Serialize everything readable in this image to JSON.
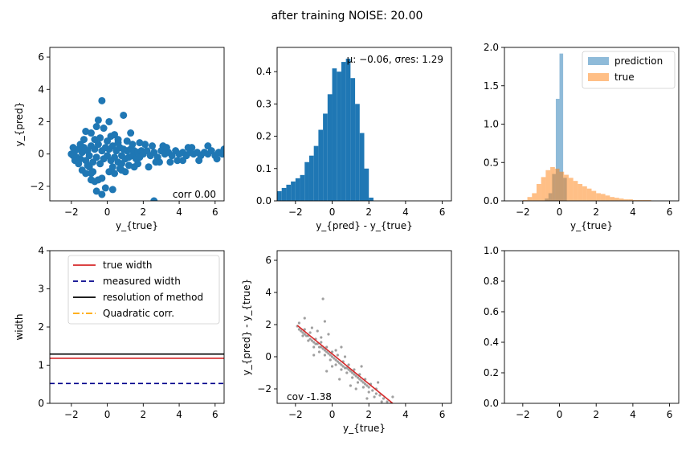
{
  "suptitle": "after training NOISE: 20.00",
  "chart_data": [
    {
      "id": "scatter-pred-vs-true",
      "type": "scatter",
      "title": "",
      "xlabel": "y_{true}",
      "ylabel": "y_{pred}",
      "xlim": [
        -3.2,
        6.5
      ],
      "ylim": [
        -2.9,
        6.6
      ],
      "xticks": [
        -2,
        0,
        2,
        4,
        6
      ],
      "yticks": [
        -2,
        0,
        2,
        4,
        6
      ],
      "xtick_labels": [
        "−2",
        "0",
        "2",
        "4",
        "6"
      ],
      "ytick_labels": [
        "−2",
        "0",
        "2",
        "4",
        "6"
      ],
      "color": "#1f77b4",
      "annotation": "corr 0.00",
      "points": [
        [
          -2.0,
          0.0
        ],
        [
          -1.9,
          -0.1
        ],
        [
          -1.8,
          0.2
        ],
        [
          -1.7,
          -0.2
        ],
        [
          -1.6,
          0.3
        ],
        [
          -1.5,
          -0.3
        ],
        [
          -1.4,
          0.1
        ],
        [
          -1.3,
          0.4
        ],
        [
          -1.2,
          -0.4
        ],
        [
          -1.1,
          0.2
        ],
        [
          -1.0,
          -0.1
        ],
        [
          -0.9,
          0.5
        ],
        [
          -0.8,
          -0.5
        ],
        [
          -0.7,
          0.3
        ],
        [
          -0.6,
          -0.2
        ],
        [
          -0.5,
          0.6
        ],
        [
          -0.4,
          -0.6
        ],
        [
          -0.3,
          0.2
        ],
        [
          -0.2,
          -0.3
        ],
        [
          -0.1,
          0.4
        ],
        [
          0.0,
          -0.1
        ],
        [
          0.1,
          0.3
        ],
        [
          0.2,
          -0.4
        ],
        [
          0.3,
          0.5
        ],
        [
          0.4,
          -0.2
        ],
        [
          0.5,
          0.2
        ],
        [
          0.6,
          -0.5
        ],
        [
          0.7,
          0.4
        ],
        [
          0.8,
          -0.1
        ],
        [
          0.9,
          0.3
        ],
        [
          1.0,
          -0.3
        ],
        [
          1.1,
          0.2
        ],
        [
          1.2,
          -0.2
        ],
        [
          1.3,
          0.3
        ],
        [
          1.4,
          -0.1
        ],
        [
          1.5,
          0.2
        ],
        [
          1.6,
          -0.3
        ],
        [
          1.7,
          0.1
        ],
        [
          1.8,
          -0.2
        ],
        [
          1.9,
          0.2
        ],
        [
          2.0,
          0.0
        ],
        [
          2.2,
          0.2
        ],
        [
          2.4,
          -0.1
        ],
        [
          2.6,
          0.1
        ],
        [
          2.8,
          -0.2
        ],
        [
          3.0,
          0.2
        ],
        [
          3.2,
          0.0
        ],
        [
          3.4,
          0.1
        ],
        [
          3.6,
          -0.1
        ],
        [
          3.8,
          0.2
        ],
        [
          4.0,
          0.0
        ],
        [
          4.2,
          0.1
        ],
        [
          4.4,
          -0.1
        ],
        [
          4.6,
          0.1
        ],
        [
          4.8,
          0.0
        ],
        [
          5.0,
          0.1
        ],
        [
          5.2,
          -0.1
        ],
        [
          5.4,
          0.1
        ],
        [
          5.6,
          0.0
        ],
        [
          5.8,
          0.2
        ],
        [
          6.0,
          -0.1
        ],
        [
          6.2,
          0.1
        ],
        [
          6.4,
          0.0
        ],
        [
          6.5,
          0.3
        ],
        [
          -0.3,
          3.3
        ],
        [
          0.9,
          2.4
        ],
        [
          -0.5,
          2.1
        ],
        [
          0.1,
          2.0
        ],
        [
          -0.9,
          1.3
        ],
        [
          -1.2,
          1.4
        ],
        [
          0.4,
          1.2
        ],
        [
          1.3,
          1.3
        ],
        [
          -0.6,
          1.7
        ],
        [
          -0.2,
          1.6
        ],
        [
          0.2,
          1.1
        ],
        [
          -1.4,
          -1.0
        ],
        [
          -1.2,
          -1.2
        ],
        [
          -0.8,
          -1.1
        ],
        [
          -0.3,
          -1.5
        ],
        [
          0.1,
          -1.1
        ],
        [
          0.4,
          -1.2
        ],
        [
          0.7,
          -0.9
        ],
        [
          -0.5,
          -1.6
        ],
        [
          -0.7,
          -1.7
        ],
        [
          0.8,
          -1.0
        ],
        [
          1.0,
          -1.1
        ],
        [
          1.5,
          -0.8
        ],
        [
          2.3,
          -0.8
        ],
        [
          1.2,
          -0.7
        ],
        [
          -0.9,
          -1.2
        ],
        [
          -0.3,
          -2.5
        ],
        [
          -0.6,
          -2.3
        ],
        [
          -0.1,
          -2.1
        ],
        [
          0.3,
          -2.2
        ],
        [
          2.6,
          -2.9
        ],
        [
          -0.9,
          -1.6
        ],
        [
          -1.0,
          -0.8
        ],
        [
          -0.7,
          0.9
        ],
        [
          -0.4,
          1.0
        ],
        [
          0.6,
          0.9
        ],
        [
          1.1,
          0.8
        ],
        [
          -1.3,
          0.9
        ],
        [
          2.1,
          0.6
        ],
        [
          3.1,
          0.5
        ],
        [
          3.5,
          -0.5
        ],
        [
          4.5,
          0.4
        ],
        [
          5.1,
          -0.4
        ],
        [
          5.6,
          0.5
        ],
        [
          6.1,
          -0.3
        ],
        [
          4.2,
          -0.4
        ],
        [
          2.9,
          -0.5
        ],
        [
          1.8,
          0.7
        ],
        [
          -1.8,
          -0.4
        ],
        [
          -1.9,
          0.4
        ],
        [
          -1.6,
          -0.6
        ],
        [
          -1.5,
          0.6
        ],
        [
          -1.1,
          -0.7
        ],
        [
          0.0,
          0.8
        ],
        [
          0.3,
          -0.8
        ],
        [
          0.6,
          0.7
        ],
        [
          0.8,
          -0.6
        ],
        [
          1.4,
          0.6
        ],
        [
          1.7,
          -0.6
        ],
        [
          2.5,
          0.5
        ],
        [
          2.7,
          -0.5
        ],
        [
          3.3,
          0.4
        ],
        [
          3.9,
          -0.4
        ],
        [
          4.7,
          0.4
        ]
      ]
    },
    {
      "id": "hist-residual",
      "type": "bar",
      "title": "",
      "xlabel": "y_{pred} - y_{true}",
      "ylabel": "",
      "xlim": [
        -3.0,
        6.5
      ],
      "ylim": [
        0,
        0.475
      ],
      "xticks": [
        -2,
        0,
        2,
        4,
        6
      ],
      "yticks": [
        0.0,
        0.1,
        0.2,
        0.3,
        0.4
      ],
      "xtick_labels": [
        "−2",
        "0",
        "2",
        "4",
        "6"
      ],
      "ytick_labels": [
        "0.0",
        "0.1",
        "0.2",
        "0.3",
        "0.4"
      ],
      "color": "#1f77b4",
      "annotation": "μ: −0.06, σres: 1.29",
      "bin_edges": [
        -3.0,
        -2.75,
        -2.5,
        -2.25,
        -2.0,
        -1.75,
        -1.5,
        -1.25,
        -1.0,
        -0.75,
        -0.5,
        -0.25,
        0.0,
        0.25,
        0.5,
        0.75,
        1.0,
        1.25,
        1.5,
        1.75,
        2.0,
        2.25
      ],
      "values": [
        0.03,
        0.04,
        0.05,
        0.06,
        0.07,
        0.08,
        0.12,
        0.14,
        0.17,
        0.22,
        0.27,
        0.33,
        0.41,
        0.4,
        0.43,
        0.44,
        0.38,
        0.3,
        0.21,
        0.1,
        0.01
      ]
    },
    {
      "id": "hist-pred-true",
      "type": "bar",
      "title": "",
      "xlabel": "y_{true}",
      "ylabel": "",
      "xlim": [
        -3.0,
        6.5
      ],
      "ylim": [
        0,
        2.0
      ],
      "xticks": [
        -2,
        0,
        2,
        4,
        6
      ],
      "yticks": [
        0.0,
        0.5,
        1.0,
        1.5,
        2.0
      ],
      "xtick_labels": [
        "−2",
        "0",
        "2",
        "4",
        "6"
      ],
      "ytick_labels": [
        "0.0",
        "0.5",
        "1.0",
        "1.5",
        "2.0"
      ],
      "legend_position": "top-right",
      "series": [
        {
          "name": "prediction",
          "color": "#1f77b4",
          "alpha": 0.5,
          "bin_edges": [
            -0.8,
            -0.6,
            -0.4,
            -0.2,
            0.0,
            0.2,
            0.4
          ],
          "values": [
            0.03,
            0.1,
            0.35,
            1.33,
            1.92,
            0.3
          ]
        },
        {
          "name": "true",
          "color": "#ff7f0e",
          "alpha": 0.5,
          "bin_edges": [
            -2.0,
            -1.75,
            -1.5,
            -1.25,
            -1.0,
            -0.75,
            -0.5,
            -0.25,
            0.0,
            0.25,
            0.5,
            0.75,
            1.0,
            1.25,
            1.5,
            1.75,
            2.0,
            2.25,
            2.5,
            2.75,
            3.0,
            3.25,
            3.5,
            3.75,
            4.0,
            4.25,
            4.5,
            4.75,
            5.0
          ],
          "values": [
            0.01,
            0.05,
            0.1,
            0.22,
            0.31,
            0.4,
            0.44,
            0.42,
            0.38,
            0.34,
            0.3,
            0.26,
            0.22,
            0.19,
            0.16,
            0.13,
            0.1,
            0.09,
            0.07,
            0.05,
            0.04,
            0.03,
            0.02,
            0.02,
            0.01,
            0.01,
            0.01,
            0.01
          ]
        }
      ]
    },
    {
      "id": "width-lines",
      "type": "line",
      "title": "",
      "xlabel": "",
      "ylabel": "width",
      "xlim": [
        -3.2,
        6.5
      ],
      "ylim": [
        0,
        4
      ],
      "xticks": [
        -2,
        0,
        2,
        4,
        6
      ],
      "yticks": [
        0,
        1,
        2,
        3,
        4
      ],
      "xtick_labels": [
        "−2",
        "0",
        "2",
        "4",
        "6"
      ],
      "ytick_labels": [
        "0",
        "1",
        "2",
        "3",
        "4"
      ],
      "legend_position": "top-right",
      "series": [
        {
          "name": "true width",
          "color": "#d62728",
          "style": "solid",
          "y": 1.18
        },
        {
          "name": "measured width",
          "color": "#00008b",
          "style": "dashed",
          "y": 0.52
        },
        {
          "name": "resolution of method",
          "color": "#000000",
          "style": "solid",
          "y": 1.29
        },
        {
          "name": "Quadratic corr.",
          "color": "#ffa500",
          "style": "dashdot",
          "y": null
        }
      ]
    },
    {
      "id": "scatter-residual-vs-true",
      "type": "scatter",
      "title": "",
      "xlabel": "y_{true}",
      "ylabel": "y_{pred} - y_{true}",
      "xlim": [
        -3.0,
        6.5
      ],
      "ylim": [
        -2.9,
        6.6
      ],
      "xticks": [
        -2,
        0,
        2,
        4,
        6
      ],
      "yticks": [
        -2,
        0,
        2,
        4,
        6
      ],
      "xtick_labels": [
        "−2",
        "0",
        "2",
        "4",
        "6"
      ],
      "ytick_labels": [
        "−2",
        "0",
        "2",
        "4",
        "6"
      ],
      "point_color": "#808080",
      "fit_color": "#d62728",
      "annotation": "cov -1.38",
      "fit_line": {
        "x": [
          -1.9,
          3.3
        ],
        "y": [
          1.95,
          -2.9
        ]
      },
      "points": [
        [
          -1.9,
          1.9
        ],
        [
          -1.8,
          1.7
        ],
        [
          -1.7,
          1.6
        ],
        [
          -1.6,
          1.5
        ],
        [
          -1.5,
          1.4
        ],
        [
          -1.4,
          1.3
        ],
        [
          -1.3,
          1.3
        ],
        [
          -1.2,
          1.1
        ],
        [
          -1.1,
          1.0
        ],
        [
          -1.0,
          0.9
        ],
        [
          -0.9,
          0.8
        ],
        [
          -0.8,
          0.8
        ],
        [
          -0.7,
          0.6
        ],
        [
          -0.6,
          0.6
        ],
        [
          -0.5,
          0.5
        ],
        [
          -0.4,
          0.4
        ],
        [
          -0.3,
          0.3
        ],
        [
          -0.2,
          0.2
        ],
        [
          -0.1,
          0.1
        ],
        [
          0.0,
          0.0
        ],
        [
          0.1,
          -0.1
        ],
        [
          0.2,
          -0.2
        ],
        [
          0.3,
          -0.3
        ],
        [
          0.4,
          -0.4
        ],
        [
          0.5,
          -0.5
        ],
        [
          0.6,
          -0.6
        ],
        [
          0.7,
          -0.7
        ],
        [
          0.8,
          -0.7
        ],
        [
          0.9,
          -0.8
        ],
        [
          1.0,
          -0.9
        ],
        [
          1.1,
          -1.0
        ],
        [
          1.2,
          -1.1
        ],
        [
          1.3,
          -1.2
        ],
        [
          1.4,
          -1.3
        ],
        [
          1.5,
          -1.4
        ],
        [
          1.6,
          -1.5
        ],
        [
          1.7,
          -1.6
        ],
        [
          1.8,
          -1.7
        ],
        [
          1.9,
          -1.8
        ],
        [
          2.0,
          -1.9
        ],
        [
          2.2,
          -2.1
        ],
        [
          2.4,
          -2.3
        ],
        [
          2.6,
          -2.4
        ],
        [
          2.8,
          -2.6
        ],
        [
          3.0,
          -2.8
        ],
        [
          3.2,
          -2.9
        ],
        [
          -1.8,
          2.1
        ],
        [
          -1.5,
          1.7
        ],
        [
          -1.2,
          1.5
        ],
        [
          -0.9,
          1.1
        ],
        [
          -0.6,
          0.9
        ],
        [
          -0.3,
          0.6
        ],
        [
          0.0,
          0.3
        ],
        [
          0.3,
          0.1
        ],
        [
          0.6,
          -0.3
        ],
        [
          0.9,
          -0.5
        ],
        [
          1.2,
          -0.8
        ],
        [
          1.5,
          -1.1
        ],
        [
          1.8,
          -1.4
        ],
        [
          2.1,
          -1.7
        ],
        [
          2.4,
          -2.0
        ],
        [
          -1.6,
          1.3
        ],
        [
          -1.3,
          1.0
        ],
        [
          -1.0,
          0.6
        ],
        [
          -0.7,
          0.3
        ],
        [
          -0.4,
          0.1
        ],
        [
          -0.1,
          -0.2
        ],
        [
          0.2,
          -0.5
        ],
        [
          0.5,
          -0.8
        ],
        [
          0.8,
          -1.0
        ],
        [
          1.1,
          -1.3
        ],
        [
          1.4,
          -1.6
        ],
        [
          1.7,
          -1.9
        ],
        [
          2.0,
          -2.2
        ],
        [
          2.3,
          -2.5
        ],
        [
          2.7,
          -2.8
        ],
        [
          -0.2,
          1.4
        ],
        [
          -0.8,
          1.6
        ],
        [
          -1.5,
          2.4
        ],
        [
          0.5,
          0.6
        ],
        [
          0.4,
          -1.4
        ],
        [
          1.0,
          -1.8
        ],
        [
          -0.3,
          -0.9
        ],
        [
          -1.0,
          0.1
        ],
        [
          1.6,
          -0.6
        ],
        [
          -0.5,
          3.6
        ],
        [
          -0.4,
          2.2
        ],
        [
          1.9,
          -2.6
        ],
        [
          0.0,
          -0.6
        ],
        [
          0.7,
          0.0
        ],
        [
          -1.1,
          1.8
        ],
        [
          1.3,
          -2.0
        ],
        [
          2.5,
          -1.6
        ],
        [
          -0.6,
          1.2
        ],
        [
          0.2,
          0.4
        ],
        [
          3.3,
          -2.5
        ]
      ]
    },
    {
      "id": "empty-axes",
      "type": "scatter",
      "title": "",
      "xlabel": "",
      "ylabel": "",
      "xlim": [
        -3.0,
        6.5
      ],
      "ylim": [
        0,
        1
      ],
      "xticks": [
        -2,
        0,
        2,
        4,
        6
      ],
      "yticks": [
        0.0,
        0.2,
        0.4,
        0.6,
        0.8,
        1.0
      ],
      "xtick_labels": [
        "−2",
        "0",
        "2",
        "4",
        "6"
      ],
      "ytick_labels": [
        "0.0",
        "0.2",
        "0.4",
        "0.6",
        "0.8",
        "1.0"
      ],
      "points": []
    }
  ]
}
